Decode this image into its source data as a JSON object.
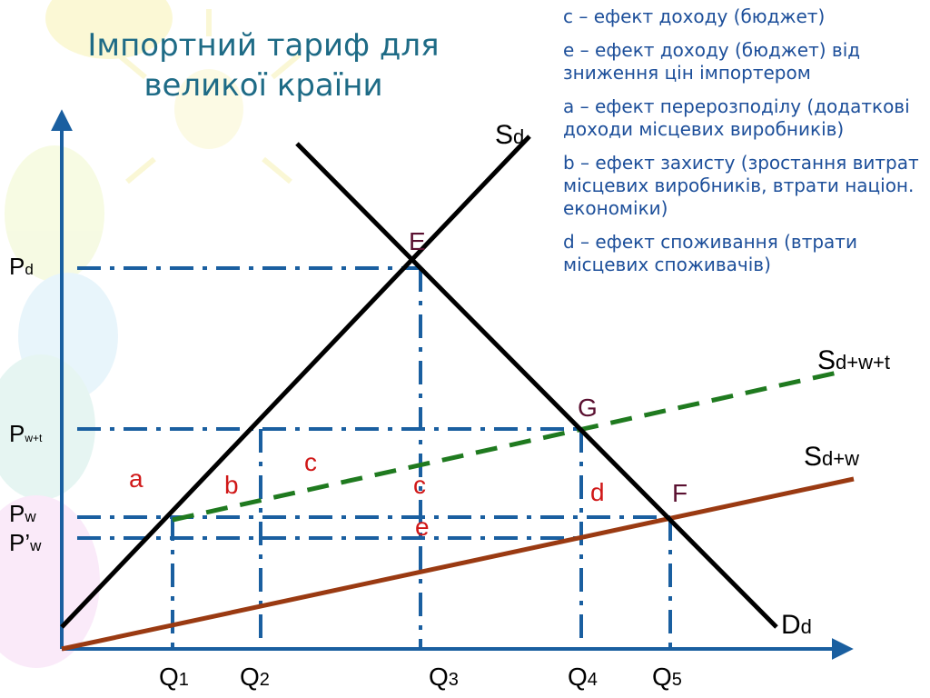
{
  "slide": {
    "title": "Імпортний тариф для великої країни",
    "legend": [
      "c – ефект доходу (бюджет)",
      "e – ефект доходу (бюджет) від зниження цін імпортером",
      "a – ефект перерозподілу (додаткові доходи місцевих виробників)",
      "b – ефект захисту (зростання витрат місцевих виробників, втрати націон. економіки)",
      "d – ефект споживання (втрати місцевих споживачів)"
    ]
  },
  "diagram": {
    "colors": {
      "axes": "#1a5fa0",
      "curves": "#000000",
      "guides": "#1a5fa0",
      "tariff_supply": "#1f7a1f",
      "world_supply": "#9a3a12",
      "area_letters": "#d01818",
      "point_letters": "#5a1030",
      "title": "#1e6b86",
      "legend_text": "#1d4f9a"
    },
    "prices": {
      "pd": {
        "main": "P",
        "sub": "d"
      },
      "pwt": {
        "main": "P",
        "sub": "w+t"
      },
      "pw": {
        "main": "P",
        "sub": "w"
      },
      "pw2": {
        "main": "P’",
        "sub": "w"
      }
    },
    "quantities": {
      "q1": {
        "main": "Q",
        "sub": "1"
      },
      "q2": {
        "main": "Q",
        "sub": "2"
      },
      "q3": {
        "main": "Q",
        "sub": "3"
      },
      "q4": {
        "main": "Q",
        "sub": "4"
      },
      "q5": {
        "main": "Q",
        "sub": "5"
      }
    },
    "curves": {
      "sd": {
        "main": "S",
        "sub": "d"
      },
      "dd": {
        "main": "D",
        "sub": "d"
      },
      "sdwt": {
        "main": "S",
        "sub": "d+w+t"
      },
      "sdw": {
        "main": "S",
        "sub": "d+w"
      }
    },
    "points": {
      "e": "E",
      "g": "G",
      "f": "F"
    },
    "areas": {
      "a": "a",
      "b": "b",
      "c_top": "c",
      "c_mid": "c",
      "d": "d",
      "e": "e"
    }
  }
}
